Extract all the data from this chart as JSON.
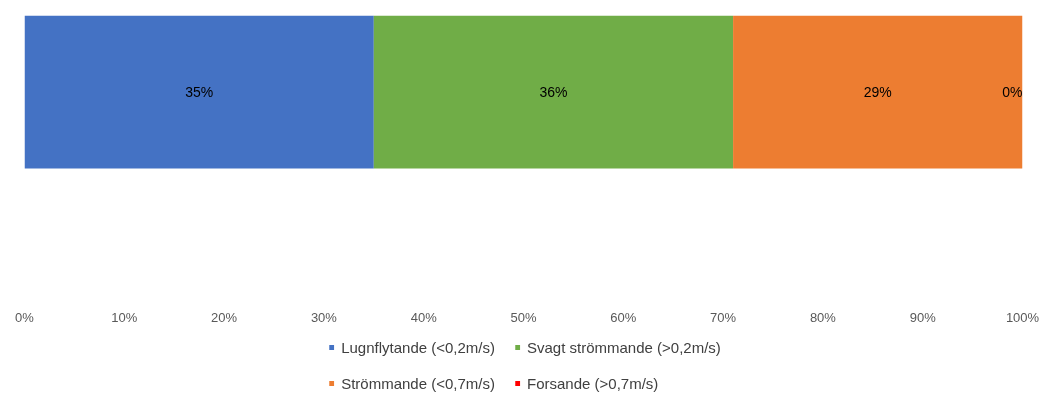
{
  "chart_data": {
    "type": "bar",
    "orientation": "horizontal",
    "stacked": true,
    "categories": [
      null
    ],
    "series": [
      {
        "name": "Lugnflytande (<0,2m/s)",
        "color": "#4472c4",
        "values": [
          35
        ],
        "value_labels": [
          "35%"
        ]
      },
      {
        "name": "Svagt strömmande (>0,2m/s)",
        "color": "#70ad47",
        "values": [
          36
        ],
        "value_labels": [
          "36%"
        ]
      },
      {
        "name": "Strömmande (<0,7m/s)",
        "color": "#ed7d31",
        "values": [
          29
        ],
        "value_labels": [
          "29%"
        ]
      },
      {
        "name": "Forsande (>0,7m/s)",
        "color": "#ff0000",
        "values": [
          0
        ],
        "value_labels": [
          "0%"
        ]
      }
    ],
    "xlim": [
      0,
      100
    ],
    "xticks": [
      {
        "value": 0,
        "label": "0%"
      },
      {
        "value": 10,
        "label": "10%"
      },
      {
        "value": 20,
        "label": "20%"
      },
      {
        "value": 30,
        "label": "30%"
      },
      {
        "value": 40,
        "label": "40%"
      },
      {
        "value": 50,
        "label": "50%"
      },
      {
        "value": 60,
        "label": "60%"
      },
      {
        "value": 70,
        "label": "70%"
      },
      {
        "value": 80,
        "label": "80%"
      },
      {
        "value": 90,
        "label": "90%"
      },
      {
        "value": 100,
        "label": "100%"
      }
    ],
    "grid": false,
    "legend": "bottom"
  }
}
